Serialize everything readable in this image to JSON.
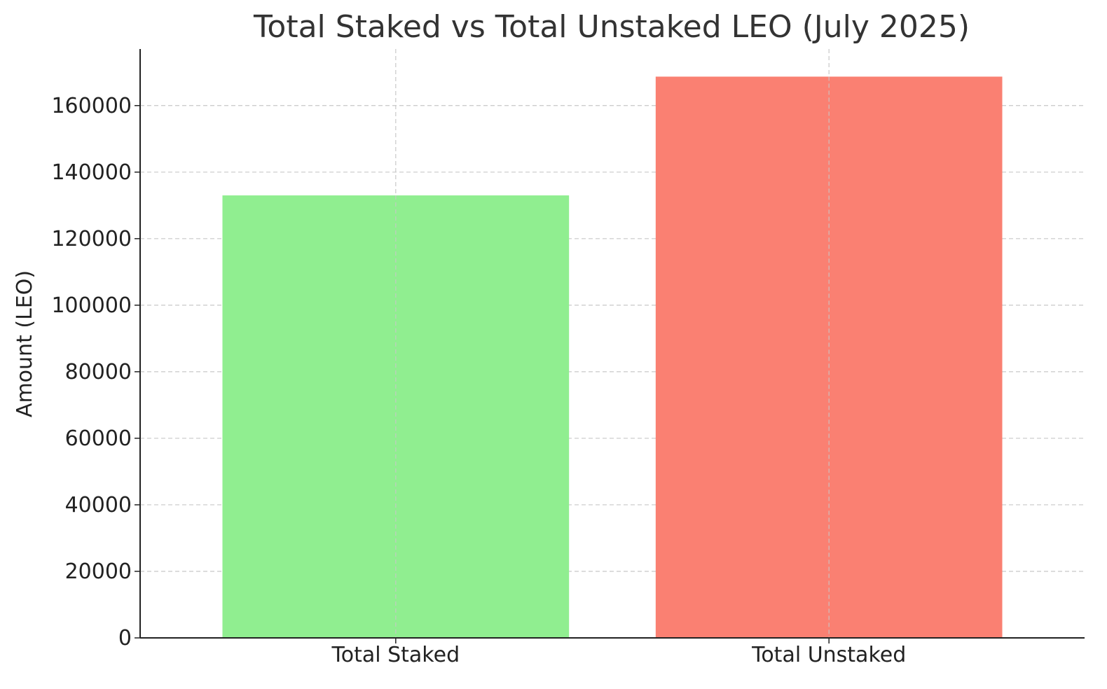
{
  "chart_data": {
    "type": "bar",
    "title": "Total Staked vs Total Unstaked LEO (July 2025)",
    "xlabel": "",
    "ylabel": "Amount (LEO)",
    "categories": [
      "Total Staked",
      "Total Unstaked"
    ],
    "values": [
      133000,
      168700
    ],
    "bar_colors": [
      "#90ee90",
      "#fa8072"
    ],
    "ylim": [
      0,
      177000
    ],
    "yticks": [
      0,
      20000,
      40000,
      60000,
      80000,
      100000,
      120000,
      140000,
      160000
    ],
    "grid": true,
    "grid_style": "dashed",
    "legend": "none"
  }
}
